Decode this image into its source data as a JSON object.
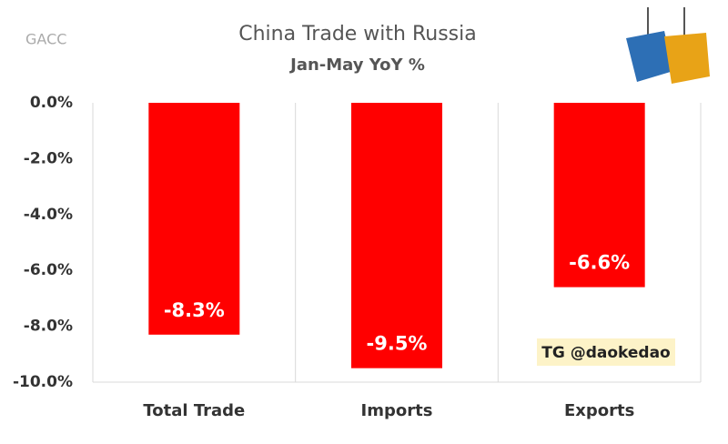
{
  "chart_data": {
    "type": "bar",
    "title": "China Trade with Russia",
    "subtitle": "Jan-May YoY %",
    "source": "GACC",
    "watermark": "TG @daokedao",
    "categories": [
      "Total Trade",
      "Imports",
      "Exports"
    ],
    "values": [
      -8.3,
      -9.5,
      -6.6
    ],
    "value_labels": [
      "-8.3%",
      "-9.5%",
      "-6.6%"
    ],
    "color": "#ff0000",
    "ylim": [
      -10,
      0
    ],
    "yticks": [
      {
        "value": 0,
        "label": "0.0%"
      },
      {
        "value": -2,
        "label": "-2.0%"
      },
      {
        "value": -4,
        "label": "-4.0%"
      },
      {
        "value": -6,
        "label": "-6.0%"
      },
      {
        "value": -8,
        "label": "-8.0%"
      },
      {
        "value": -10,
        "label": "-10.0%"
      }
    ]
  }
}
